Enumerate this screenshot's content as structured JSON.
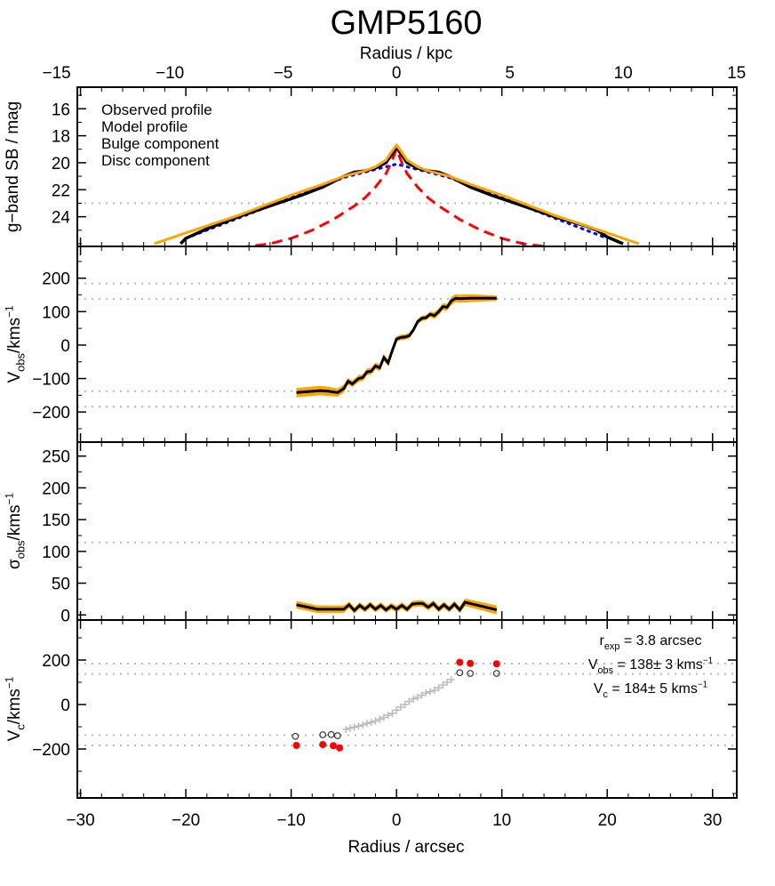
{
  "title": "GMP5160",
  "colors": {
    "observed": "#000000",
    "model": "#ffa500",
    "bulge": "#ff0000",
    "disc": "#0000ff",
    "guide": "#bbbbbb",
    "points": "#bbbbbb",
    "vc_red": "#ff0000"
  },
  "top_axis": {
    "label": "Radius / kpc",
    "ticks": [
      "−15",
      "−10",
      "−5",
      "0",
      "5",
      "10",
      "15"
    ],
    "tick_values": [
      -15,
      -10,
      -5,
      0,
      5,
      10,
      15
    ],
    "kpc_per_arcsec": 0.4648
  },
  "bottom_axis": {
    "label": "Radius / arcsec",
    "ticks": [
      "−30",
      "−20",
      "−10",
      "0",
      "10",
      "20",
      "30"
    ],
    "tick_values": [
      -30,
      -20,
      -10,
      0,
      10,
      20,
      30
    ],
    "xlim": [
      -30.3,
      32.3
    ]
  },
  "chart_data": [
    {
      "type": "line",
      "panel": "surface-brightness",
      "ylabel": "g−band SB / mag",
      "ylim": [
        26.2,
        14.4
      ],
      "yticks": [
        16,
        18,
        20,
        22,
        24
      ],
      "ytick_labels": [
        "16",
        "18",
        "20",
        "22",
        "24"
      ],
      "guides_y": [
        23.0
      ],
      "legend": [
        "Observed profile",
        "Model profile",
        "Bulge component",
        "Disc component"
      ],
      "legend_position": "top-left",
      "series": [
        {
          "name": "Observed profile",
          "x": [
            -20.5,
            -20,
            -18,
            -15,
            -12,
            -9,
            -7,
            -5,
            -4,
            -3,
            -2,
            -1,
            -0.3,
            0,
            0.3,
            1,
            2,
            3,
            4,
            5,
            7,
            9,
            12,
            15,
            18,
            19,
            20,
            21.5
          ],
          "y": [
            26,
            25.6,
            24.9,
            24.0,
            23.2,
            22.4,
            21.8,
            21.0,
            20.7,
            20.6,
            20.4,
            20.0,
            19.2,
            18.8,
            19.2,
            20.0,
            20.4,
            20.6,
            20.7,
            21.0,
            21.8,
            22.4,
            23.2,
            24.0,
            24.7,
            25.0,
            25.5,
            26
          ]
        },
        {
          "name": "Model profile",
          "x": [
            -23,
            -20,
            -15,
            -10,
            -7,
            -5,
            -3,
            -2,
            -1,
            -0.3,
            0,
            0.3,
            1,
            2,
            3,
            5,
            7,
            10,
            15,
            20,
            23
          ],
          "y": [
            26,
            25.2,
            23.9,
            22.4,
            21.6,
            21.0,
            20.6,
            20.3,
            19.8,
            19.0,
            18.7,
            19.0,
            19.8,
            20.3,
            20.6,
            21.0,
            21.6,
            22.4,
            23.9,
            25.2,
            26
          ]
        },
        {
          "name": "Bulge component",
          "x": [
            -15,
            -12,
            -10,
            -8,
            -6,
            -4,
            -3,
            -2,
            -1,
            -0.5,
            0,
            0.5,
            1,
            2,
            3,
            4,
            6,
            8,
            10,
            12,
            15
          ],
          "y": [
            26.3,
            26.0,
            25.6,
            25.0,
            24.2,
            23.2,
            22.6,
            21.8,
            20.8,
            20.0,
            19.0,
            20.0,
            20.8,
            21.8,
            22.6,
            23.2,
            24.2,
            25.0,
            25.6,
            26.0,
            26.3
          ]
        },
        {
          "name": "Disc component",
          "x": [
            -20,
            -15,
            -10,
            -5,
            -2,
            0,
            2,
            5,
            10,
            15,
            20
          ],
          "y": [
            25.6,
            24.1,
            22.6,
            21.1,
            20.5,
            20.1,
            20.5,
            21.1,
            22.6,
            24.1,
            25.6
          ]
        }
      ]
    },
    {
      "type": "line",
      "panel": "velocity",
      "ylabel": "V_obs/kms⁻¹",
      "ylim": [
        -290,
        295
      ],
      "yticks": [
        -200,
        -100,
        0,
        100,
        200
      ],
      "ytick_labels": [
        "−200",
        "−100",
        "0",
        "100",
        "200"
      ],
      "guides_y": [
        184,
        138,
        -138,
        -184
      ],
      "series": [
        {
          "name": "",
          "x": [
            -9.5,
            -7.2,
            -6.5,
            -5.6,
            -5.0,
            -4.6,
            -4.2,
            -3.6,
            -3.2,
            -2.8,
            -2.4,
            -2.0,
            -1.6,
            -1.2,
            -0.8,
            -0.4,
            0,
            0.4,
            0.8,
            1.2,
            1.6,
            2.0,
            2.4,
            2.8,
            3.2,
            3.6,
            4.0,
            4.4,
            4.8,
            5.2,
            5.6,
            6.0,
            7.0,
            9.5
          ],
          "y": [
            -142,
            -136,
            -138,
            -142,
            -130,
            -108,
            -116,
            -100,
            -97,
            -80,
            -78,
            -62,
            -68,
            -37,
            -53,
            -16,
            18,
            23,
            24,
            28,
            45,
            70,
            80,
            82,
            92,
            88,
            100,
            115,
            113,
            132,
            140,
            139,
            140,
            140
          ],
          "err": [
            14,
            14,
            14,
            12,
            12,
            10,
            10,
            10,
            10,
            10,
            10,
            10,
            10,
            10,
            10,
            10,
            8,
            8,
            8,
            8,
            8,
            8,
            8,
            8,
            8,
            10,
            10,
            10,
            10,
            12,
            12,
            12,
            12,
            8
          ]
        }
      ]
    },
    {
      "type": "line",
      "panel": "dispersion",
      "ylabel": "σ_obs/kms⁻¹",
      "ylim": [
        -8,
        272
      ],
      "yticks": [
        0,
        50,
        100,
        150,
        200,
        250
      ],
      "ytick_labels": [
        "0",
        "50",
        "100",
        "150",
        "200",
        "250"
      ],
      "guides_y": [
        114
      ],
      "series": [
        {
          "name": "",
          "x": [
            -9.5,
            -7.5,
            -5,
            -4.5,
            -4,
            -3.5,
            -3,
            -2.5,
            -2,
            -1.5,
            -1,
            -0.5,
            0,
            0.5,
            1,
            1.5,
            2,
            2.5,
            3,
            3.5,
            4,
            4.5,
            5,
            5.5,
            6,
            6.5,
            7,
            9.5
          ],
          "y": [
            16,
            9,
            9,
            16,
            7,
            15,
            9,
            16,
            9,
            15,
            8,
            14,
            9,
            15,
            9,
            17,
            18,
            18,
            12,
            18,
            9,
            16,
            9,
            17,
            8,
            20,
            18,
            8
          ],
          "err": [
            6,
            6,
            6,
            5,
            5,
            5,
            5,
            5,
            5,
            5,
            5,
            5,
            5,
            5,
            5,
            5,
            5,
            5,
            5,
            5,
            5,
            5,
            5,
            5,
            5,
            6,
            6,
            7
          ]
        }
      ]
    },
    {
      "type": "scatter",
      "panel": "circular-velocity",
      "ylabel": "V_c/kms⁻¹",
      "ylim": [
        -420,
        380
      ],
      "yticks": [
        -200,
        0,
        200
      ],
      "ytick_labels": [
        "−200",
        "0",
        "200"
      ],
      "guides_y": [
        184,
        138,
        -138,
        -184
      ],
      "series": [
        {
          "name": "",
          "marker": "plus",
          "x": [
            -4.8,
            -4.4,
            -4.0,
            -3.6,
            -3.2,
            -2.8,
            -2.4,
            -2.0,
            -1.6,
            -1.2,
            -0.8,
            -0.4,
            0,
            0.4,
            0.8,
            1.2,
            1.6,
            2.0,
            2.4,
            2.8,
            3.2,
            3.6,
            4.0,
            4.4,
            4.8,
            5.2
          ],
          "y": [
            -112,
            -106,
            -102,
            -97,
            -92,
            -85,
            -80,
            -74,
            -66,
            -58,
            -48,
            -40,
            -25,
            -12,
            0,
            14,
            25,
            32,
            42,
            52,
            58,
            64,
            75,
            88,
            100,
            112
          ]
        },
        {
          "name": "",
          "marker": "open-circle",
          "x": [
            -9.6,
            -7.0,
            -6.2,
            -5.6,
            6.0,
            7.0,
            9.5
          ],
          "y": [
            -143,
            -136,
            -135,
            -140,
            143,
            140,
            140
          ]
        },
        {
          "name": "",
          "marker": "filled-circle",
          "x": [
            -9.5,
            -7.0,
            -6.0,
            -5.4,
            6.0,
            7.0,
            9.5
          ],
          "y": [
            -184,
            -180,
            -185,
            -195,
            190,
            185,
            183
          ]
        }
      ],
      "annotations": {
        "rexp": {
          "base": "r",
          "sub": "exp",
          "text": " = 3.8 arcsec"
        },
        "vobs": {
          "base": "V",
          "sub": "obs",
          "text": " = 138± 3 kms",
          "sup": "−1"
        },
        "vc": {
          "base": "V",
          "sub": "c",
          "text": " = 184± 5 kms",
          "sup": "−1"
        }
      }
    }
  ]
}
